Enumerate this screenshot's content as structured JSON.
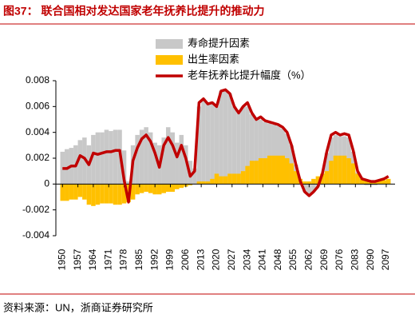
{
  "chart_data": {
    "type": "bar-line",
    "title": "图37：  联合国相对发达国家老年抚养比提升的推动力",
    "source": "资料来源：UN，浙商证券研究所",
    "x": [
      1950,
      1952,
      1954,
      1956,
      1958,
      1960,
      1962,
      1964,
      1966,
      1968,
      1970,
      1972,
      1974,
      1976,
      1978,
      1980,
      1982,
      1984,
      1986,
      1988,
      1990,
      1992,
      1994,
      1996,
      1998,
      2000,
      2002,
      2004,
      2006,
      2008,
      2010,
      2012,
      2014,
      2016,
      2018,
      2020,
      2022,
      2024,
      2026,
      2028,
      2030,
      2032,
      2034,
      2036,
      2038,
      2040,
      2042,
      2044,
      2046,
      2048,
      2050,
      2052,
      2054,
      2056,
      2058,
      2060,
      2062,
      2064,
      2066,
      2068,
      2070,
      2072,
      2074,
      2076,
      2078,
      2080,
      2082,
      2084,
      2086,
      2088,
      2090,
      2092,
      2094,
      2096,
      2098
    ],
    "series": [
      {
        "name": "寿命提升因素",
        "color": "#c8c8c8",
        "kind": "bar",
        "values": [
          0.0025,
          0.0027,
          0.0028,
          0.003,
          0.0034,
          0.0036,
          0.003,
          0.0038,
          0.004,
          0.004,
          0.0042,
          0.0041,
          0.0042,
          0.0042,
          0.0026,
          0.0002,
          0.003,
          0.0038,
          0.0042,
          0.0044,
          0.004,
          0.0032,
          0.003,
          0.0036,
          0.0044,
          0.004,
          0.0032,
          0.0038,
          0.003,
          0.0018,
          0.0012,
          0.006,
          0.0066,
          0.0062,
          0.0062,
          0.006,
          0.0072,
          0.0073,
          0.007,
          0.006,
          0.0055,
          0.006,
          0.006,
          0.0054,
          0.005,
          0.005,
          0.0048,
          0.0047,
          0.0046,
          0.0045,
          0.0043,
          0.0039,
          0.003,
          0.0015,
          0.0004,
          -0.0006,
          -0.0009,
          -0.0006,
          -0.0002,
          0.0008,
          0.0024,
          0.0036,
          0.0038,
          0.0037,
          0.0037,
          0.0036,
          0.0025,
          0.0009,
          0.0004,
          -0.0001,
          -0.0001,
          -0.0001,
          0.0,
          0.0001,
          0.0002
        ]
      },
      {
        "name": "出生率因素",
        "color": "#ffc000",
        "kind": "bar",
        "values": [
          -0.0013,
          -0.0013,
          -0.0012,
          -0.0012,
          -0.001,
          -0.0012,
          -0.0016,
          -0.0017,
          -0.0016,
          -0.0015,
          -0.0015,
          -0.0015,
          -0.0016,
          -0.0016,
          -0.0015,
          -0.0014,
          -0.0012,
          -0.0008,
          -0.0007,
          -0.0006,
          -0.0007,
          -0.0008,
          -0.0008,
          -0.0007,
          -0.0006,
          -0.0006,
          -0.0004,
          -0.0003,
          -0.0002,
          -0.0001,
          0.0,
          0.0002,
          0.0002,
          0.0002,
          0.0004,
          0.0008,
          0.0006,
          0.0006,
          0.0008,
          0.0008,
          0.0008,
          0.001,
          0.0014,
          0.0018,
          0.0018,
          0.002,
          0.002,
          0.0022,
          0.0022,
          0.0022,
          0.0022,
          0.002,
          0.0016,
          0.001,
          0.0004,
          0.0002,
          0.0002,
          0.0004,
          0.0006,
          0.0008,
          0.001,
          0.0018,
          0.0022,
          0.0022,
          0.0022,
          0.002,
          0.0016,
          0.0008,
          0.0004,
          0.0003,
          0.0003,
          0.0003,
          0.0003,
          0.0003,
          0.0004
        ]
      },
      {
        "name": "老年抚养比提升幅度（%）",
        "color": "#c00000",
        "kind": "line",
        "values": [
          0.0012,
          0.0012,
          0.0014,
          0.0014,
          0.0022,
          0.002,
          0.0015,
          0.0024,
          0.0023,
          0.0024,
          0.0025,
          0.0025,
          0.0026,
          0.0026,
          0.0003,
          -0.0014,
          0.0018,
          0.0028,
          0.0035,
          0.0038,
          0.0033,
          0.0024,
          0.0013,
          0.003,
          0.0036,
          0.003,
          0.0021,
          0.003,
          0.002,
          0.0006,
          0.001,
          0.0063,
          0.0066,
          0.0062,
          0.0063,
          0.006,
          0.0072,
          0.0073,
          0.007,
          0.006,
          0.0055,
          0.006,
          0.0063,
          0.0055,
          0.005,
          0.0052,
          0.0049,
          0.0048,
          0.0047,
          0.0046,
          0.0044,
          0.004,
          0.003,
          0.0015,
          0.0002,
          -0.0006,
          -0.0009,
          -0.0006,
          -0.0002,
          0.0008,
          0.0025,
          0.0038,
          0.004,
          0.0038,
          0.0039,
          0.0038,
          0.0026,
          0.001,
          0.0004,
          0.0003,
          0.0002,
          0.0002,
          0.0003,
          0.0004,
          0.0006
        ]
      }
    ],
    "xlim": [
      1947,
      2101
    ],
    "xticks": [
      1950,
      1957,
      1964,
      1971,
      1978,
      1985,
      1992,
      1999,
      2006,
      2013,
      2020,
      2027,
      2034,
      2041,
      2048,
      2055,
      2062,
      2069,
      2076,
      2083,
      2090,
      2097
    ],
    "ylim": [
      -0.004,
      0.008
    ],
    "yticks": [
      0.008,
      0.006,
      0.004,
      0.002,
      0,
      -0.002,
      -0.004
    ]
  }
}
